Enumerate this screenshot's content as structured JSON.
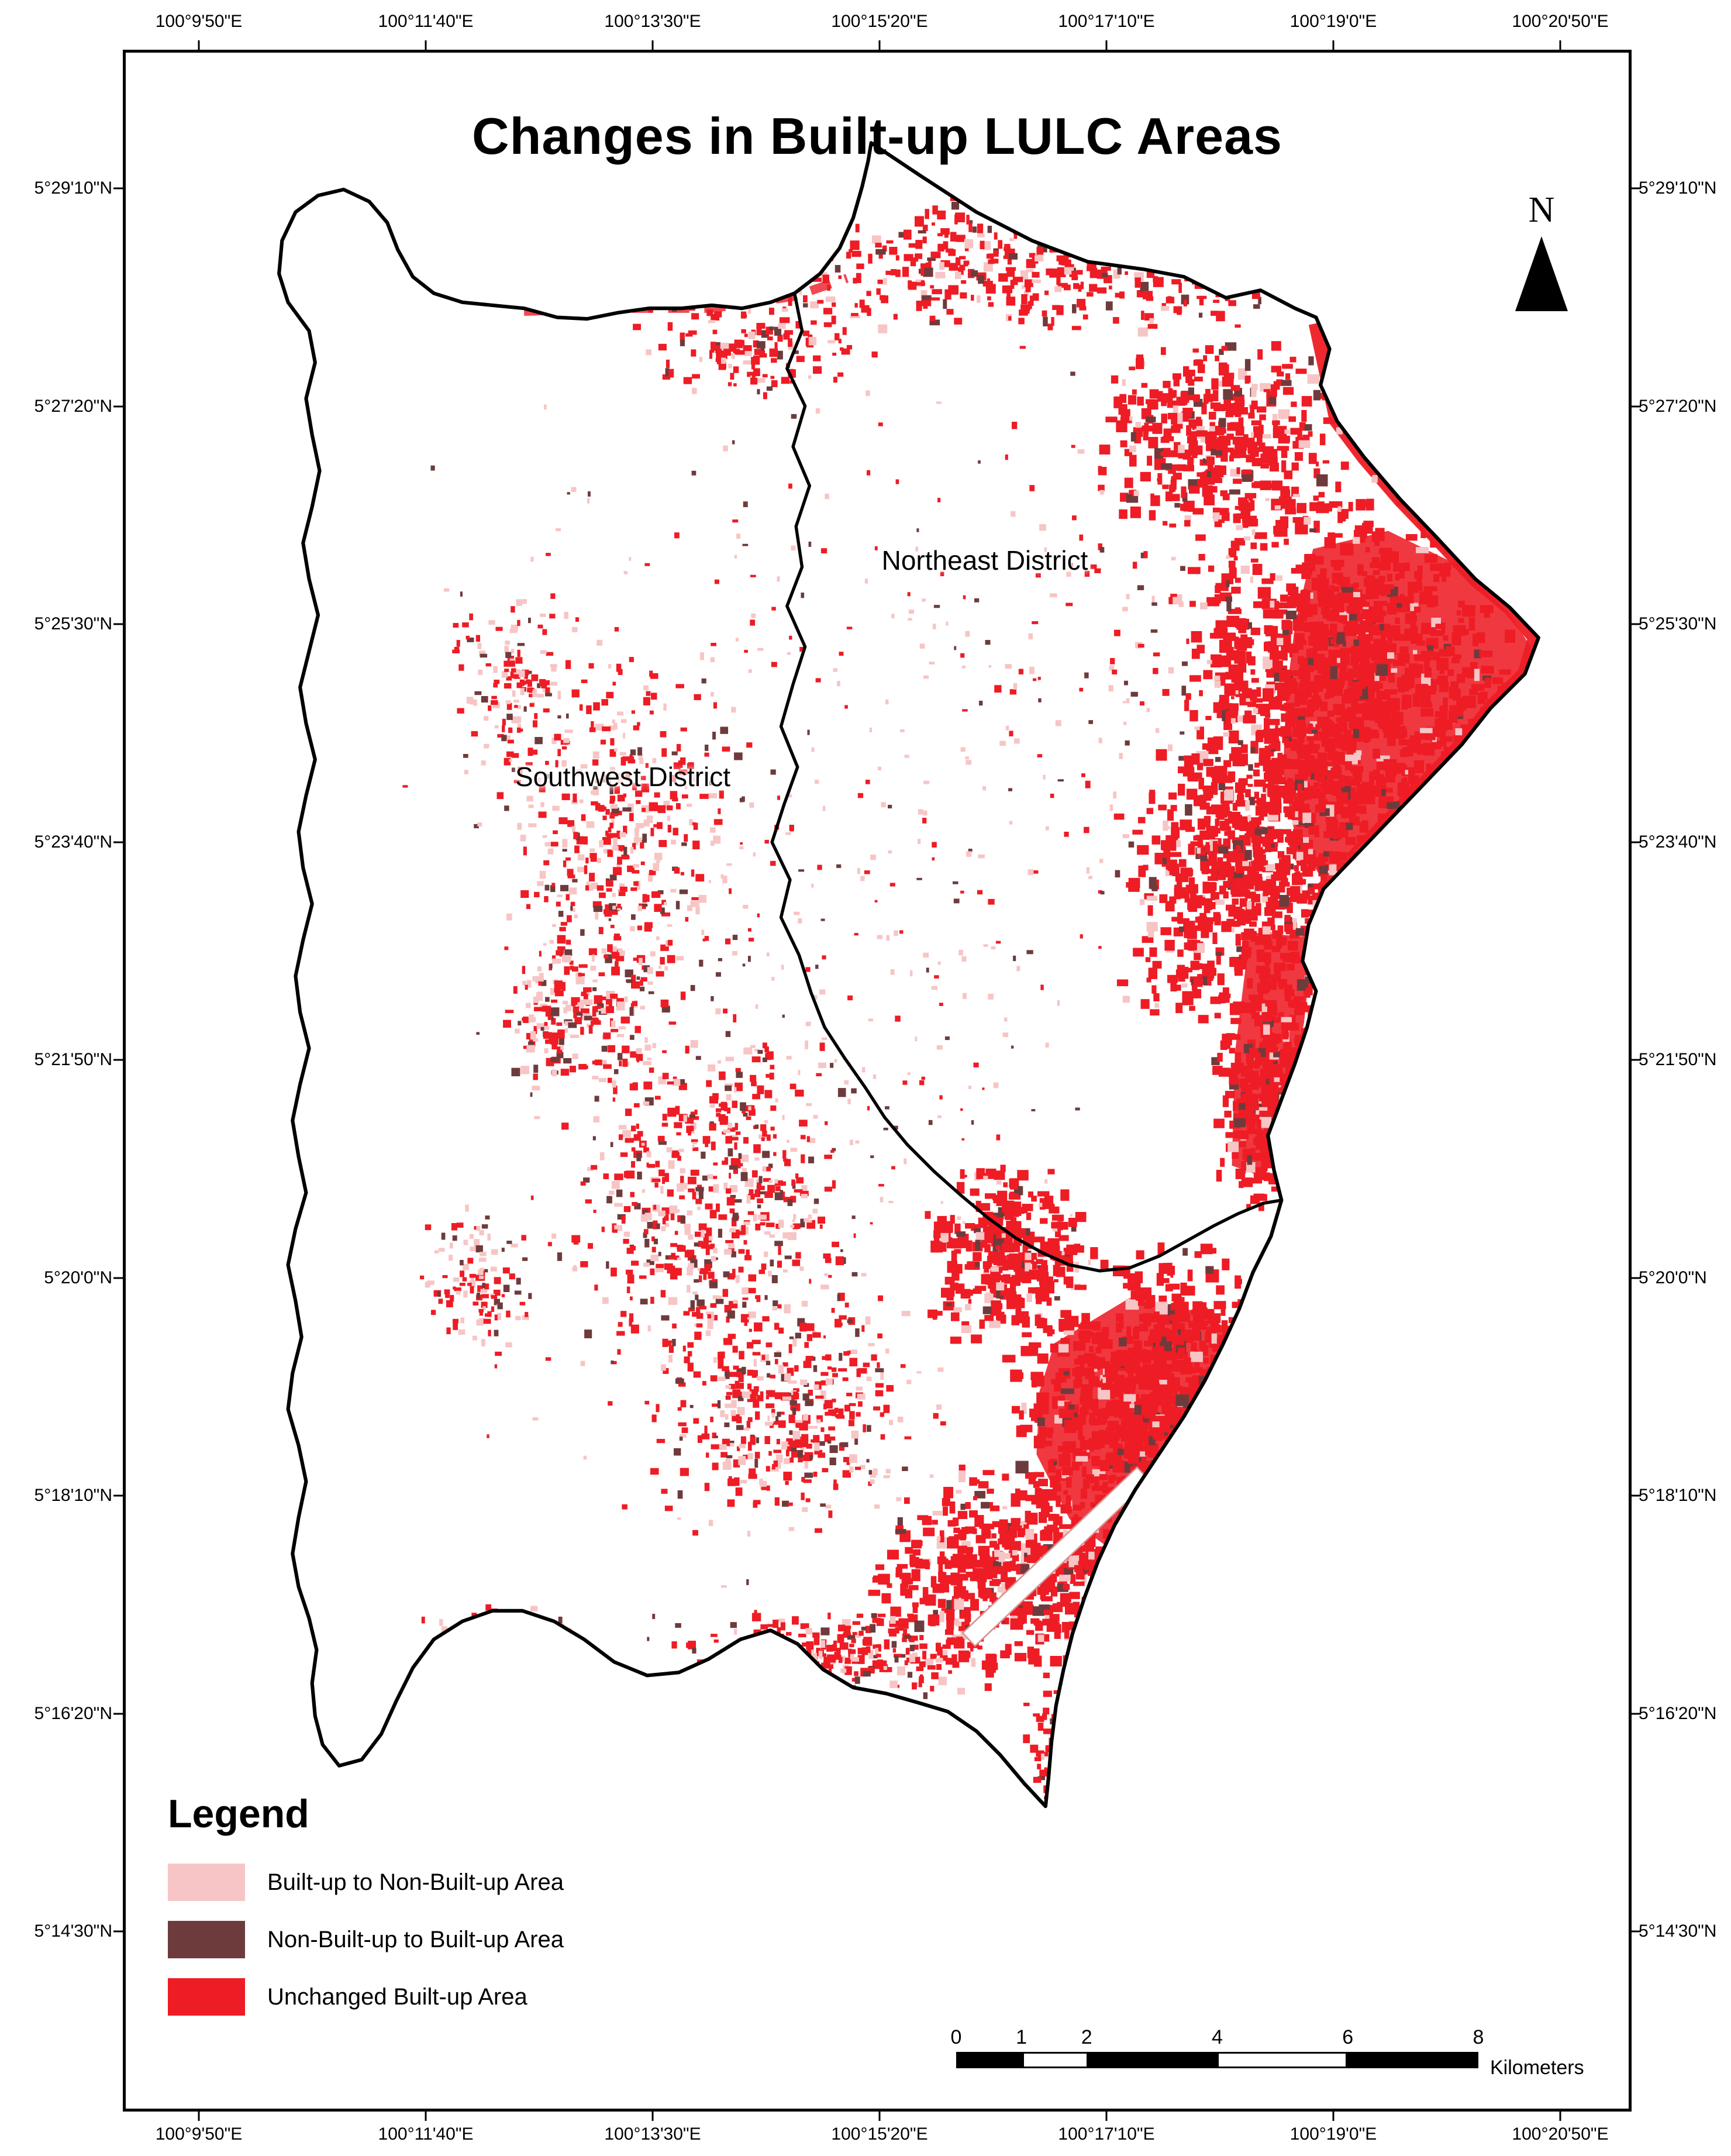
{
  "title": "Changes in Built-up LULC Areas",
  "north": {
    "label": "N"
  },
  "districts": [
    {
      "name": "Northeast District"
    },
    {
      "name": "Southwest District"
    }
  ],
  "legend": {
    "heading": "Legend",
    "items": [
      {
        "label": "Built-up to Non-Built-up Area",
        "color": "#f7c5c5"
      },
      {
        "label": "Non-Built-up to Built-up Area",
        "color": "#6e3b3c"
      },
      {
        "label": "Unchanged Built-up Area",
        "color": "#ee1c25"
      }
    ]
  },
  "scale_bar": {
    "ticks": [
      "0",
      "1",
      "2",
      "4",
      "6",
      "8"
    ],
    "unit": "Kilometers"
  },
  "grid": {
    "longitude_labels": [
      "100°9'50\"E",
      "100°11'40\"E",
      "100°13'30\"E",
      "100°15'20\"E",
      "100°17'10\"E",
      "100°19'0\"E",
      "100°20'50\"E"
    ],
    "latitude_labels": [
      "5°29'10\"N",
      "5°27'20\"N",
      "5°25'30\"N",
      "5°23'40\"N",
      "5°21'50\"N",
      "5°20'0\"N",
      "5°18'10\"N",
      "5°16'20\"N",
      "5°14'30\"N"
    ]
  },
  "map": {
    "outline_color": "#000000",
    "background_color": "#ffffff"
  }
}
